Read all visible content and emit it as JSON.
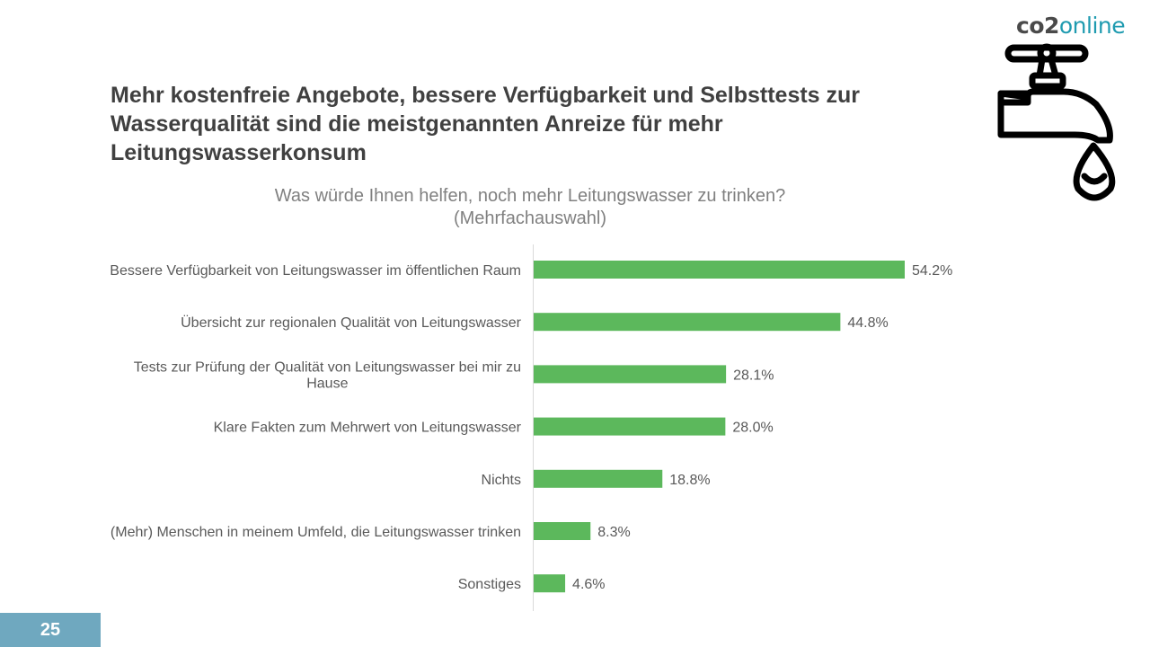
{
  "slide": {
    "logo_co2": "co2",
    "logo_online": "online",
    "headline": "Mehr kostenfreie Angebote, bessere Verfügbarkeit und Selbsttests zur Wasserqualität sind die meistgenannten Anreize für mehr Leitungswasserkonsum",
    "subtitle_line1": "Was würde Ihnen helfen, noch mehr Leitungswasser zu trinken?",
    "subtitle_line2": "(Mehrfachauswahl)",
    "page_number": "25",
    "icon": "water-tap-icon"
  },
  "colors": {
    "bar": "#5cb85c",
    "text": "#595959",
    "headline": "#404040",
    "badge": "#6fa8bf",
    "axis": "#d9d9d9"
  },
  "chart_data": {
    "type": "bar",
    "orientation": "horizontal",
    "title": "Was würde Ihnen helfen, noch mehr Leitungswasser zu trinken? (Mehrfachauswahl)",
    "categories": [
      [
        "Bessere Verfügbarkeit von Leitungswasser im öffentlichen Raum"
      ],
      [
        "Übersicht zur regionalen Qualität von Leitungswasser"
      ],
      [
        "Tests zur Prüfung der Qualität von Leitungswasser bei mir zu",
        "Hause"
      ],
      [
        "Klare Fakten zum Mehrwert von Leitungswasser"
      ],
      [
        "Nichts"
      ],
      [
        "(Mehr) Menschen in meinem Umfeld, die Leitungswasser trinken"
      ],
      [
        "Sonstiges"
      ]
    ],
    "values": [
      54.2,
      44.8,
      28.1,
      28.0,
      18.8,
      8.3,
      4.6
    ],
    "value_labels": [
      "54.2%",
      "44.8%",
      "28.1%",
      "28.0%",
      "18.8%",
      "8.3%",
      "4.6%"
    ],
    "unit": "%",
    "xlim": [
      0,
      54.2
    ],
    "grid": false,
    "legend": "none"
  }
}
